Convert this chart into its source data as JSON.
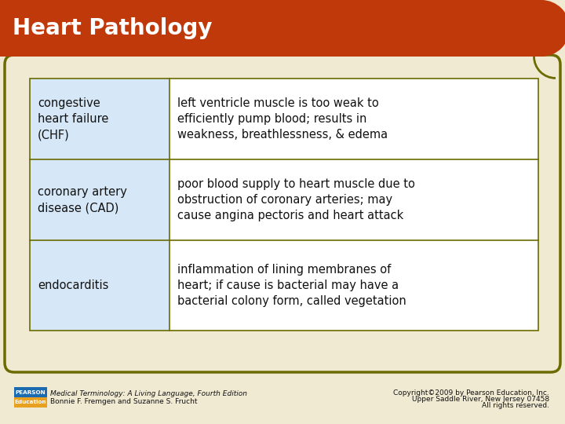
{
  "title": "Heart Pathology",
  "title_color": "#ffffff",
  "title_bg_color": "#c0390a",
  "bg_color": "#f0ead2",
  "table_border_color": "#6b6b00",
  "cell_left_bg": "#d6e8f7",
  "cell_right_bg": "#ffffff",
  "rows": [
    {
      "left": "congestive\nheart failure\n(CHF)",
      "right": "left ventricle muscle is too weak to\nefficiently pump blood; results in\nweakness, breathlessness, & edema"
    },
    {
      "left": "coronary artery\ndisease (CAD)",
      "right": "poor blood supply to heart muscle due to\nobstruction of coronary arteries; may\ncause angina pectoris and heart attack"
    },
    {
      "left": "endocarditis",
      "right": "inflammation of lining membranes of\nheart; if cause is bacterial may have a\nbacterial colony form, called vegetation"
    }
  ],
  "footer_left_line1": "Medical Terminology: A Living Language, Fourth Edition",
  "footer_left_line2": "Bonnie F. Fremgen and Suzanne S. Frucht",
  "footer_right_line1": "Copyright©2009 by Pearson Education, Inc.",
  "footer_right_line2": "Upper Saddle River, New Jersey 07458",
  "footer_right_line3": "All rights reserved.",
  "text_color": "#111111",
  "font_size_title": 20,
  "font_size_cell": 10.5,
  "font_size_footer": 6.5,
  "pearson_bg1": "#1a6baf",
  "pearson_bg2": "#e8a020"
}
